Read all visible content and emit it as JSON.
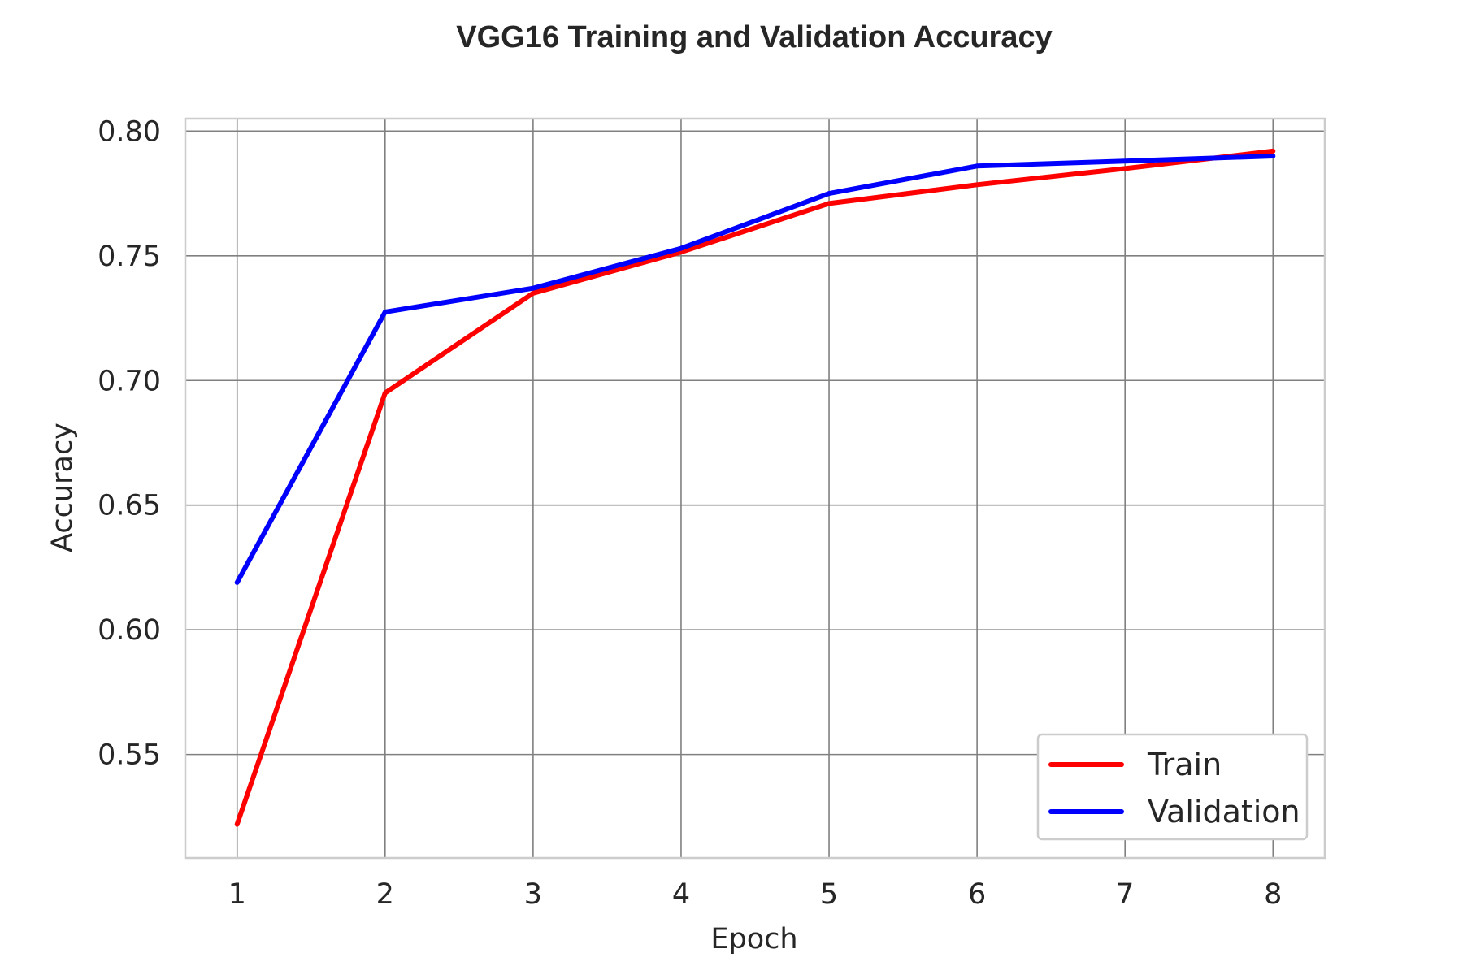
{
  "chart_data": {
    "type": "line",
    "title": "VGG16 Training and Validation Accuracy",
    "xlabel": "Epoch",
    "ylabel": "Accuracy",
    "x": [
      1,
      2,
      3,
      4,
      5,
      6,
      7,
      8
    ],
    "xticks": [
      1,
      2,
      3,
      4,
      5,
      6,
      7,
      8
    ],
    "yticks": [
      0.55,
      0.6,
      0.65,
      0.7,
      0.75,
      0.8
    ],
    "xlim": [
      0.65,
      8.35
    ],
    "ylim": [
      0.5085,
      0.805
    ],
    "grid": true,
    "legend_position": "bottom-right",
    "series": [
      {
        "name": "Train",
        "color": "#ff0000",
        "values": [
          0.522,
          0.695,
          0.735,
          0.7515,
          0.771,
          0.7785,
          0.785,
          0.792
        ]
      },
      {
        "name": "Validation",
        "color": "#0000ff",
        "values": [
          0.619,
          0.7275,
          0.737,
          0.753,
          0.775,
          0.786,
          0.788,
          0.79
        ]
      }
    ]
  }
}
